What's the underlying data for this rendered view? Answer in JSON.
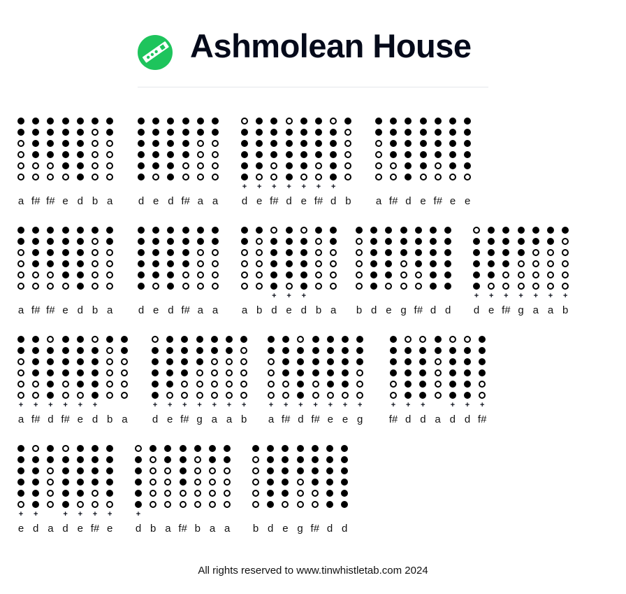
{
  "header": {
    "title": "Ashmolean House",
    "logo_icon": "tin-whistle-icon",
    "logo_color": "#1ec45c"
  },
  "fingerings": {
    "d": [
      1,
      1,
      1,
      1,
      1,
      1
    ],
    "e": [
      1,
      1,
      1,
      1,
      1,
      0
    ],
    "f#": [
      1,
      1,
      1,
      1,
      0,
      0
    ],
    "g": [
      1,
      1,
      1,
      0,
      0,
      0
    ],
    "a": [
      1,
      1,
      0,
      0,
      0,
      0
    ],
    "b": [
      1,
      0,
      0,
      0,
      0,
      0
    ],
    "d+": [
      0,
      1,
      1,
      1,
      1,
      1
    ],
    "e+": [
      1,
      1,
      1,
      1,
      1,
      0
    ],
    "f#+": [
      1,
      1,
      1,
      1,
      0,
      0
    ],
    "g+": [
      1,
      1,
      1,
      0,
      0,
      0
    ],
    "a+": [
      1,
      1,
      0,
      0,
      0,
      0
    ],
    "b+": [
      1,
      0,
      0,
      0,
      0,
      0
    ]
  },
  "rows": [
    [
      {
        "notes": [
          "a",
          "f#",
          "f#",
          "e",
          "d",
          "b",
          "a"
        ],
        "high": [
          0,
          0,
          0,
          0,
          0,
          0,
          0
        ]
      },
      {
        "notes": [
          "d",
          "e",
          "d",
          "f#",
          "a",
          "a"
        ],
        "high": [
          0,
          0,
          0,
          0,
          0,
          0
        ]
      },
      {
        "notes": [
          "d",
          "e",
          "f#",
          "d",
          "e",
          "f#",
          "d",
          "b"
        ],
        "high": [
          1,
          1,
          1,
          1,
          1,
          1,
          1,
          0
        ]
      },
      {
        "notes": [
          "a",
          "f#",
          "d",
          "e",
          "f#",
          "e",
          "e"
        ],
        "high": [
          0,
          0,
          0,
          0,
          0,
          0,
          0
        ]
      }
    ],
    [
      {
        "notes": [
          "a",
          "f#",
          "f#",
          "e",
          "d",
          "b",
          "a"
        ],
        "high": [
          0,
          0,
          0,
          0,
          0,
          0,
          0
        ]
      },
      {
        "notes": [
          "d",
          "e",
          "d",
          "f#",
          "a",
          "a"
        ],
        "high": [
          0,
          0,
          0,
          0,
          0,
          0
        ]
      },
      {
        "notes": [
          "a",
          "b",
          "d",
          "e",
          "d",
          "b",
          "a"
        ],
        "high": [
          0,
          0,
          1,
          1,
          1,
          0,
          0
        ]
      },
      {
        "notes": [
          "b",
          "d",
          "e",
          "g",
          "f#",
          "d",
          "d"
        ],
        "high": [
          0,
          0,
          0,
          0,
          0,
          0,
          0
        ]
      },
      {
        "notes": [
          "d",
          "e",
          "f#",
          "g",
          "a",
          "a",
          "b"
        ],
        "high": [
          1,
          1,
          1,
          1,
          1,
          1,
          1
        ]
      }
    ],
    [
      {
        "notes": [
          "a",
          "f#",
          "d",
          "f#",
          "e",
          "d",
          "b",
          "a"
        ],
        "high": [
          1,
          1,
          1,
          1,
          1,
          1,
          0,
          0
        ]
      },
      {
        "notes": [
          "d",
          "e",
          "f#",
          "g",
          "a",
          "a",
          "b"
        ],
        "high": [
          1,
          1,
          1,
          1,
          1,
          1,
          1
        ]
      },
      {
        "notes": [
          "a",
          "f#",
          "d",
          "f#",
          "e",
          "e",
          "g"
        ],
        "high": [
          1,
          1,
          1,
          1,
          1,
          1,
          1
        ]
      },
      {
        "notes": [
          "f#",
          "d",
          "d",
          "a",
          "d",
          "d",
          "f#"
        ],
        "high": [
          1,
          1,
          1,
          0,
          1,
          1,
          1
        ]
      }
    ],
    [
      {
        "notes": [
          "e",
          "d",
          "a",
          "d",
          "e",
          "f#",
          "e"
        ],
        "high": [
          1,
          1,
          0,
          1,
          1,
          1,
          1
        ]
      },
      {
        "notes": [
          "d",
          "b",
          "a",
          "f#",
          "b",
          "a",
          "a"
        ],
        "high": [
          1,
          0,
          0,
          0,
          0,
          0,
          0
        ]
      },
      {
        "notes": [
          "b",
          "d",
          "e",
          "g",
          "f#",
          "d",
          "d"
        ],
        "high": [
          0,
          0,
          0,
          0,
          0,
          0,
          0
        ]
      }
    ]
  ],
  "footer": {
    "text": "All rights reserved to www.tinwhistletab.com 2024"
  }
}
